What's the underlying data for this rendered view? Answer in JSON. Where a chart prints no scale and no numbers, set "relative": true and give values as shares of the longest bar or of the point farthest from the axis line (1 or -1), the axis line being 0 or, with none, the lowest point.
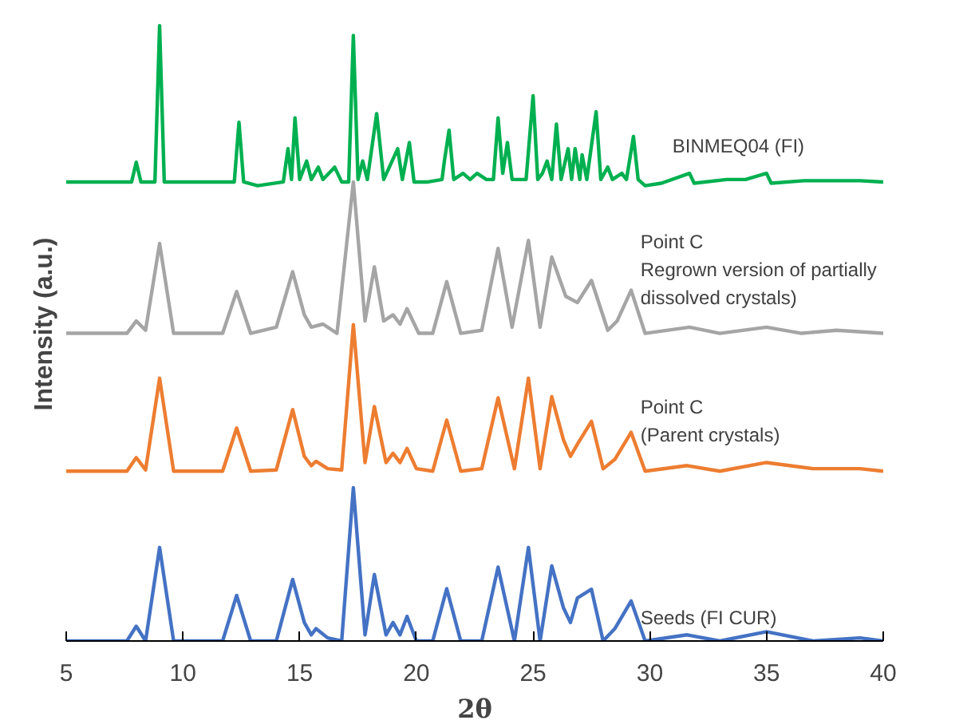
{
  "chart_data": {
    "type": "line",
    "relative": true,
    "xlabel": "2θ",
    "ylabel": "Intensity (a.u.)",
    "xlim": [
      5,
      40
    ],
    "xticks": [
      5,
      10,
      15,
      20,
      25,
      30,
      35,
      40
    ],
    "grid": false,
    "marker": "none",
    "line_style": "solid",
    "series": [
      {
        "name": "BINMEQ04 (FI)",
        "color": "#00b050",
        "x": [
          5,
          7.8,
          8.0,
          8.2,
          8.8,
          9.0,
          9.2,
          12.2,
          12.4,
          12.6,
          13.2,
          14.3,
          14.5,
          14.65,
          14.8,
          15.0,
          15.3,
          15.5,
          15.8,
          16.0,
          16.5,
          16.8,
          17.1,
          17.3,
          17.5,
          17.7,
          17.9,
          18.3,
          18.6,
          19.2,
          19.4,
          19.7,
          19.9,
          20.5,
          21.1,
          21.2,
          21.4,
          21.6,
          22.0,
          22.3,
          22.6,
          23.0,
          23.3,
          23.5,
          23.7,
          23.9,
          24.1,
          24.7,
          25.0,
          25.2,
          25.4,
          25.6,
          25.8,
          26.0,
          26.2,
          26.5,
          26.65,
          26.8,
          27.0,
          27.1,
          27.3,
          27.7,
          27.9,
          28.2,
          28.4,
          28.8,
          29.0,
          29.3,
          29.5,
          29.8,
          30.5,
          31.7,
          31.9,
          33.3,
          34.1,
          35.0,
          35.2,
          36.6,
          37.5,
          38.3,
          39.0,
          40
        ],
        "values": [
          0.746,
          0.746,
          0.778,
          0.746,
          0.746,
          1.0,
          0.746,
          0.746,
          0.843,
          0.746,
          0.74,
          0.746,
          0.8,
          0.75,
          0.85,
          0.75,
          0.78,
          0.75,
          0.77,
          0.75,
          0.77,
          0.746,
          0.746,
          0.984,
          0.75,
          0.78,
          0.75,
          0.857,
          0.75,
          0.8,
          0.75,
          0.81,
          0.746,
          0.746,
          0.75,
          0.78,
          0.83,
          0.75,
          0.76,
          0.75,
          0.76,
          0.75,
          0.75,
          0.85,
          0.76,
          0.81,
          0.75,
          0.75,
          0.886,
          0.75,
          0.76,
          0.78,
          0.75,
          0.84,
          0.75,
          0.8,
          0.75,
          0.8,
          0.75,
          0.79,
          0.75,
          0.86,
          0.75,
          0.77,
          0.75,
          0.76,
          0.75,
          0.82,
          0.75,
          0.74,
          0.744,
          0.76,
          0.744,
          0.75,
          0.75,
          0.76,
          0.744,
          0.748,
          0.748,
          0.748,
          0.748,
          0.746
        ]
      },
      {
        "name": "Point C\nRegrown version of partially\ndissolved crystals)",
        "color": "#a5a5a5",
        "x": [
          5,
          7.6,
          8.0,
          8.4,
          9.0,
          9.6,
          11.7,
          12.3,
          12.9,
          14.0,
          14.7,
          15.2,
          15.5,
          16.0,
          16.6,
          17.3,
          17.8,
          18.2,
          18.6,
          19.0,
          19.3,
          19.6,
          20.1,
          20.7,
          21.3,
          21.9,
          22.8,
          23.5,
          24.1,
          24.8,
          25.3,
          25.8,
          26.4,
          26.9,
          27.5,
          28.2,
          28.6,
          29.2,
          29.8,
          31.7,
          33.0,
          35.0,
          36.5,
          38.0,
          40
        ],
        "values": [
          0.5,
          0.5,
          0.52,
          0.505,
          0.646,
          0.5,
          0.5,
          0.568,
          0.5,
          0.51,
          0.6,
          0.53,
          0.51,
          0.515,
          0.5,
          0.746,
          0.52,
          0.608,
          0.52,
          0.53,
          0.515,
          0.54,
          0.5,
          0.5,
          0.584,
          0.5,
          0.505,
          0.638,
          0.51,
          0.651,
          0.51,
          0.624,
          0.56,
          0.55,
          0.586,
          0.505,
          0.52,
          0.57,
          0.5,
          0.51,
          0.5,
          0.51,
          0.5,
          0.505,
          0.5
        ]
      },
      {
        "name": "Point C\n(Parent crystals)",
        "color": "#ed7d31",
        "x": [
          5,
          7.6,
          8.0,
          8.4,
          9.0,
          9.6,
          11.7,
          12.3,
          12.9,
          14.0,
          14.7,
          15.2,
          15.5,
          15.7,
          16.2,
          16.8,
          17.3,
          17.8,
          18.2,
          18.7,
          19.0,
          19.3,
          19.6,
          20.0,
          20.7,
          21.3,
          21.9,
          22.8,
          23.5,
          24.2,
          24.8,
          25.3,
          25.8,
          26.3,
          26.6,
          26.9,
          27.5,
          28.0,
          28.5,
          29.2,
          29.8,
          31.6,
          33.0,
          35.0,
          37.0,
          39.0,
          40
        ],
        "values": [
          0.276,
          0.276,
          0.298,
          0.278,
          0.427,
          0.276,
          0.276,
          0.346,
          0.276,
          0.278,
          0.376,
          0.3,
          0.285,
          0.292,
          0.28,
          0.278,
          0.514,
          0.29,
          0.381,
          0.29,
          0.305,
          0.29,
          0.313,
          0.28,
          0.276,
          0.359,
          0.276,
          0.28,
          0.395,
          0.28,
          0.427,
          0.28,
          0.397,
          0.327,
          0.3,
          0.32,
          0.357,
          0.28,
          0.295,
          0.339,
          0.276,
          0.285,
          0.276,
          0.29,
          0.28,
          0.28,
          0.276
        ]
      },
      {
        "name": "Seeds (FI CUR)",
        "color": "#4472c4",
        "x": [
          5,
          7.6,
          8.0,
          8.4,
          9.0,
          9.6,
          11.7,
          12.3,
          12.9,
          14.0,
          14.7,
          15.2,
          15.5,
          15.7,
          16.2,
          16.8,
          17.3,
          17.8,
          18.2,
          18.7,
          19.0,
          19.3,
          19.6,
          20.0,
          20.7,
          21.3,
          21.9,
          22.8,
          23.5,
          24.2,
          24.8,
          25.3,
          25.8,
          26.3,
          26.6,
          26.9,
          27.5,
          28.0,
          28.5,
          29.2,
          29.8,
          31.6,
          33.0,
          35.0,
          37.0,
          39.0,
          40
        ],
        "values": [
          0.0,
          0.0,
          0.024,
          0.0,
          0.152,
          0.0,
          0.0,
          0.074,
          0.0,
          0.0,
          0.1,
          0.03,
          0.01,
          0.02,
          0.005,
          0.0,
          0.249,
          0.01,
          0.108,
          0.01,
          0.03,
          0.01,
          0.04,
          0.0,
          0.0,
          0.085,
          0.0,
          0.0,
          0.12,
          0.0,
          0.152,
          0.0,
          0.122,
          0.054,
          0.03,
          0.07,
          0.084,
          0.0,
          0.02,
          0.065,
          0.0,
          0.01,
          0.0,
          0.015,
          0.0,
          0.005,
          0.0
        ]
      }
    ]
  }
}
